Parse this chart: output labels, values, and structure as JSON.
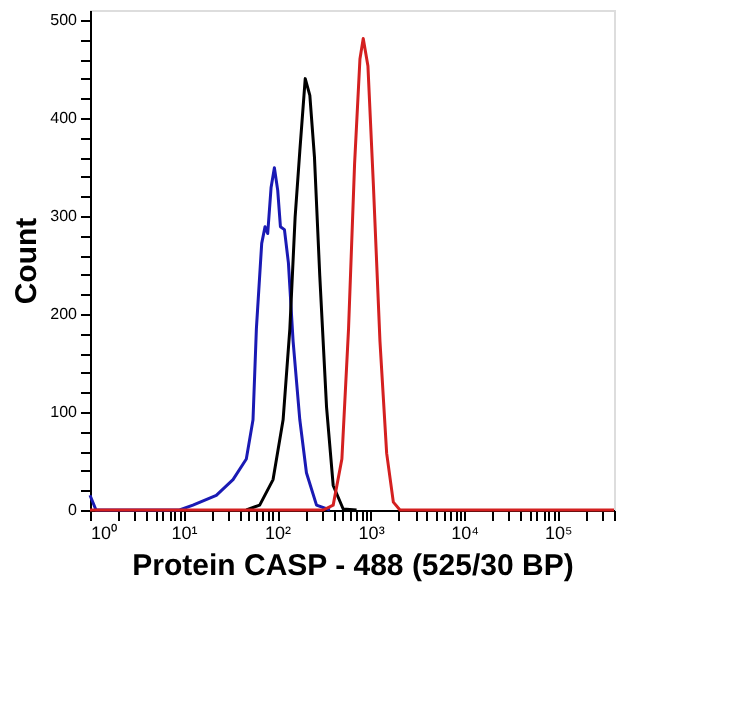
{
  "chart_data": {
    "type": "line",
    "xlabel": "Protein CASP - 488 (525/30 BP)",
    "ylabel": "Count",
    "log": "x",
    "grid": false,
    "legend": false,
    "marker": "none",
    "line_style": "solid",
    "xlim": [
      1,
      400000
    ],
    "ylim": [
      0,
      510
    ],
    "xticks": [
      {
        "value": 1,
        "label": "10⁰"
      },
      {
        "value": 2,
        "label": null
      },
      {
        "value": 3,
        "label": null
      },
      {
        "value": 4,
        "label": null
      },
      {
        "value": 5,
        "label": null
      },
      {
        "value": 6,
        "label": null
      },
      {
        "value": 7,
        "label": null
      },
      {
        "value": 8,
        "label": null
      },
      {
        "value": 9,
        "label": null
      },
      {
        "value": 10,
        "label": "10¹"
      },
      {
        "value": 20,
        "label": null
      },
      {
        "value": 30,
        "label": null
      },
      {
        "value": 40,
        "label": null
      },
      {
        "value": 50,
        "label": null
      },
      {
        "value": 60,
        "label": null
      },
      {
        "value": 70,
        "label": null
      },
      {
        "value": 80,
        "label": null
      },
      {
        "value": 90,
        "label": null
      },
      {
        "value": 100,
        "label": "10²"
      },
      {
        "value": 200,
        "label": null
      },
      {
        "value": 300,
        "label": null
      },
      {
        "value": 400,
        "label": null
      },
      {
        "value": 500,
        "label": null
      },
      {
        "value": 600,
        "label": null
      },
      {
        "value": 700,
        "label": null
      },
      {
        "value": 800,
        "label": null
      },
      {
        "value": 900,
        "label": null
      },
      {
        "value": 1000,
        "label": "10³"
      },
      {
        "value": 2000,
        "label": null
      },
      {
        "value": 3000,
        "label": null
      },
      {
        "value": 4000,
        "label": null
      },
      {
        "value": 5000,
        "label": null
      },
      {
        "value": 6000,
        "label": null
      },
      {
        "value": 7000,
        "label": null
      },
      {
        "value": 8000,
        "label": null
      },
      {
        "value": 9000,
        "label": null
      },
      {
        "value": 10000,
        "label": "10⁴"
      },
      {
        "value": 20000,
        "label": null
      },
      {
        "value": 30000,
        "label": null
      },
      {
        "value": 40000,
        "label": null
      },
      {
        "value": 50000,
        "label": null
      },
      {
        "value": 60000,
        "label": null
      },
      {
        "value": 70000,
        "label": null
      },
      {
        "value": 80000,
        "label": null
      },
      {
        "value": 90000,
        "label": null
      },
      {
        "value": 100000,
        "label": "10⁵"
      },
      {
        "value": 200000,
        "label": null
      },
      {
        "value": 300000,
        "label": null
      },
      {
        "value": 400000,
        "label": null
      }
    ],
    "yticks": [
      0,
      {
        "value": 20,
        "label": null
      },
      {
        "value": 40,
        "label": null
      },
      {
        "value": 60,
        "label": null
      },
      {
        "value": 80,
        "label": null
      },
      100,
      {
        "value": 120,
        "label": null
      },
      {
        "value": 140,
        "label": null
      },
      {
        "value": 160,
        "label": null
      },
      {
        "value": 180,
        "label": null
      },
      200,
      {
        "value": 220,
        "label": null
      },
      {
        "value": 240,
        "label": null
      },
      {
        "value": 260,
        "label": null
      },
      {
        "value": 280,
        "label": null
      },
      300,
      {
        "value": 320,
        "label": null
      },
      {
        "value": 340,
        "label": null
      },
      {
        "value": 360,
        "label": null
      },
      {
        "value": 380,
        "label": null
      },
      400,
      {
        "value": 420,
        "label": null
      },
      {
        "value": 440,
        "label": null
      },
      {
        "value": 460,
        "label": null
      },
      {
        "value": 480,
        "label": null
      },
      500
    ],
    "series": [
      {
        "color": "#1a1ab4",
        "x": [
          1,
          1.16,
          9.06,
          12.6,
          22.4,
          33.8,
          46.9,
          55.3,
          60.1,
          68.5,
          74.4,
          79.4,
          86.3,
          93.6,
          101.6,
          108.6,
          119.9,
          132.2,
          148.4,
          175,
          206,
          264,
          367
        ],
        "values": [
          15,
          0,
          0,
          5,
          15,
          31,
          52,
          92,
          185,
          272,
          289,
          282,
          329,
          349,
          326,
          289,
          286,
          252,
          172,
          92,
          38,
          5,
          0
        ]
      },
      {
        "color": "#000000",
        "x": [
          46.9,
          65.2,
          90.6,
          116,
          137,
          156,
          175,
          200,
          224,
          251,
          286,
          338,
          398,
          509,
          708
        ],
        "values": [
          0,
          5,
          31,
          92,
          185,
          299,
          366,
          440,
          423,
          360,
          239,
          105,
          25,
          1,
          0
        ]
      },
      {
        "color": "#d42020",
        "x": [
          1,
          311,
          398,
          493,
          581,
          674,
          769,
          834,
          936,
          1069,
          1259,
          1484,
          1750,
          2060,
          400000
        ],
        "values": [
          0,
          0,
          5,
          52,
          185,
          353,
          460,
          481,
          453,
          333,
          172,
          58,
          8,
          0,
          0
        ]
      }
    ]
  }
}
